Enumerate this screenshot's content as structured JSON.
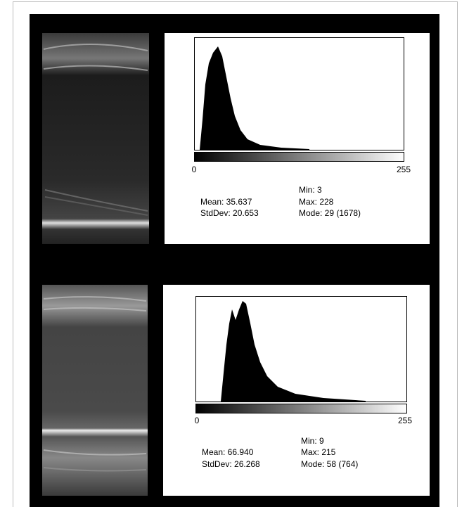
{
  "panels": [
    {
      "axis_min": "0",
      "axis_max": "255",
      "min": "Min: 3",
      "mean": "Mean: 35.637",
      "max": "Max: 228",
      "stddev": "StdDev: 20.653",
      "mode": "Mode: 29 (1678)"
    },
    {
      "axis_min": "0",
      "axis_max": "255",
      "min": "Min: 9",
      "mean": "Mean: 66.940",
      "max": "Max: 215",
      "stddev": "StdDev: 26.268",
      "mode": "Mode: 58 (764)"
    }
  ]
}
